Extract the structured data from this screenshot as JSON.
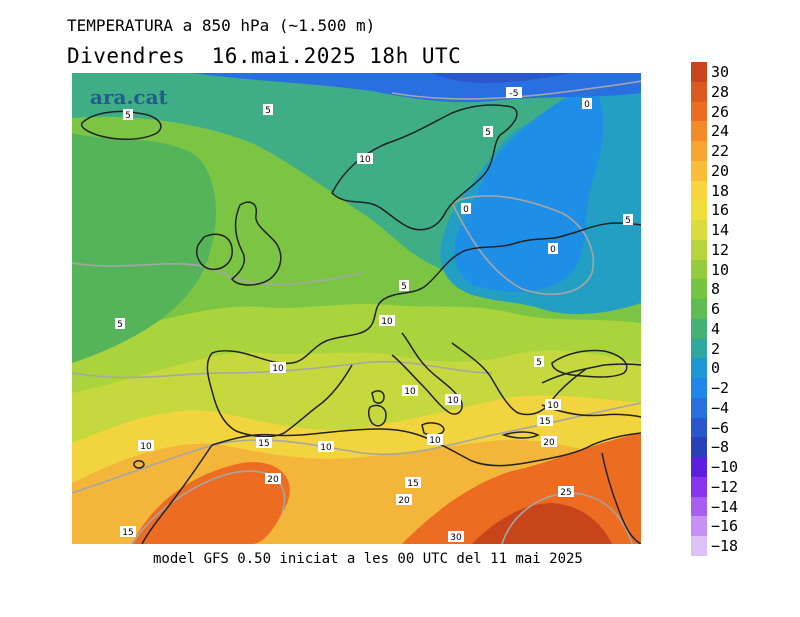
{
  "header": {
    "title": "TEMPERATURA a 850 hPa (~1.500 m)",
    "subtitle": "Divendres  16.mai.2025 18h UTC"
  },
  "watermark": "ara.cat",
  "footer": "model GFS 0.50 iniciat a les 00 UTC del 11 mai 2025",
  "colorbar": {
    "levels": [
      {
        "label": "30",
        "color": "#c8451c"
      },
      {
        "label": "28",
        "color": "#dc5a1e"
      },
      {
        "label": "26",
        "color": "#ec6d22"
      },
      {
        "label": "24",
        "color": "#f48a2a"
      },
      {
        "label": "22",
        "color": "#f8a432"
      },
      {
        "label": "20",
        "color": "#f9bd3a"
      },
      {
        "label": "18",
        "color": "#fad43f"
      },
      {
        "label": "16",
        "color": "#f0de3c"
      },
      {
        "label": "14",
        "color": "#d8dc3e"
      },
      {
        "label": "12",
        "color": "#b6d43e"
      },
      {
        "label": "10",
        "color": "#94cc3e"
      },
      {
        "label": "8",
        "color": "#76c443"
      },
      {
        "label": "6",
        "color": "#5fbc55"
      },
      {
        "label": "4",
        "color": "#44b277"
      },
      {
        "label": "2",
        "color": "#2fa8a0"
      },
      {
        "label": "0",
        "color": "#1f96d6"
      },
      {
        "label": "−2",
        "color": "#2186ec"
      },
      {
        "label": "−4",
        "color": "#2a6fe0"
      },
      {
        "label": "−6",
        "color": "#2a58cc"
      },
      {
        "label": "−8",
        "color": "#2840b8"
      },
      {
        "label": "−10",
        "color": "#5d1ce0"
      },
      {
        "label": "−12",
        "color": "#8a33ee"
      },
      {
        "label": "−14",
        "color": "#a95ef2"
      },
      {
        "label": "−16",
        "color": "#c690f4"
      },
      {
        "label": "−18",
        "color": "#dcc0f6"
      }
    ]
  },
  "isotherm_labels": [
    {
      "text": "-5"
    },
    {
      "text": "0"
    },
    {
      "text": "5"
    },
    {
      "text": "5"
    },
    {
      "text": "10"
    },
    {
      "text": "0"
    },
    {
      "text": "5"
    },
    {
      "text": "0"
    },
    {
      "text": "5"
    },
    {
      "text": "5"
    },
    {
      "text": "10"
    },
    {
      "text": "5"
    },
    {
      "text": "10"
    },
    {
      "text": "10"
    },
    {
      "text": "10"
    },
    {
      "text": "15"
    },
    {
      "text": "10"
    },
    {
      "text": "20"
    },
    {
      "text": "10"
    },
    {
      "text": "15"
    },
    {
      "text": "10"
    },
    {
      "text": "10"
    },
    {
      "text": "20"
    },
    {
      "text": "15"
    },
    {
      "text": "20"
    },
    {
      "text": "25"
    },
    {
      "text": "15"
    },
    {
      "text": "30"
    },
    {
      "text": "5"
    }
  ]
}
